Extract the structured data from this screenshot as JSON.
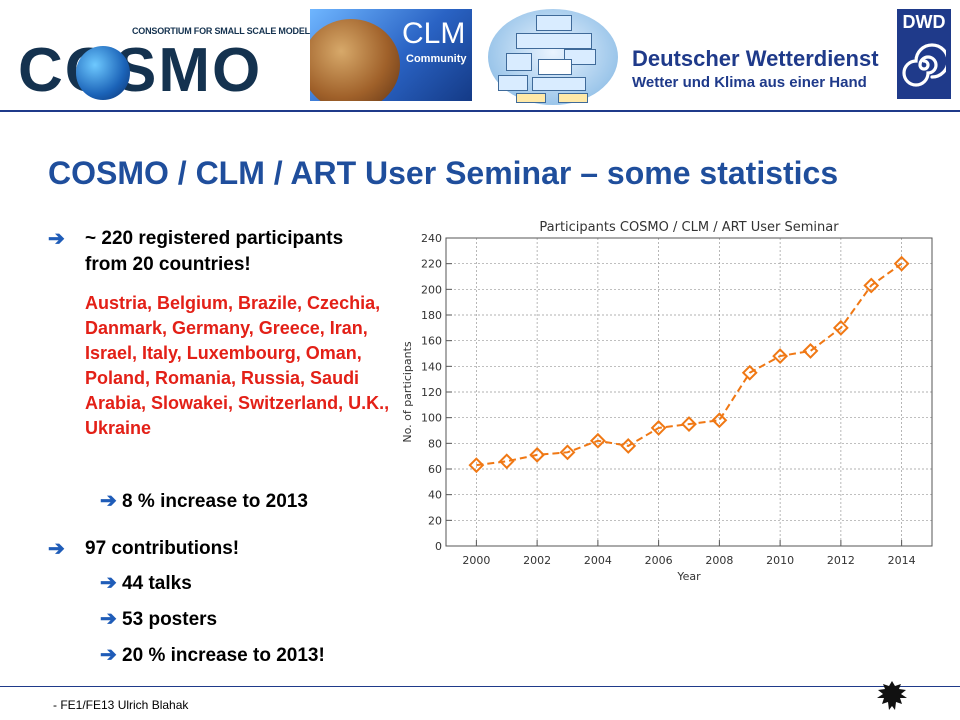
{
  "header": {
    "cosmo_logo": {
      "word": "COSMO",
      "subtitle": "CONSORTIUM FOR SMALL SCALE MODELING"
    },
    "clm_logo": {
      "word": "CLM",
      "subtitle": "Community"
    },
    "dwd": {
      "name": "Deutscher Wetterdienst",
      "slogan": "Wetter und Klima aus einer Hand",
      "logo_text": "DWD"
    },
    "accent_color": "#1f3a8a"
  },
  "slide": {
    "title": "COSMO / CLM / ART User Seminar – some statistics",
    "bullets": {
      "participants_line1": "~ 220 registered participants",
      "participants_line2": "from 20 countries!",
      "countries": "Austria, Belgium, Brazile, Czechia, Danmark, Germany, Greece, Iran, Israel, Italy, Luxembourg, Oman, Poland, Romania, Russia, Saudi Arabia, Slowakei, Switzerland, U.K., Ukraine",
      "participants_increase": "8 % increase to 2013",
      "contributions": "97 contributions!",
      "talks": "44 talks",
      "posters": "53 posters",
      "contributions_increase": "20 % increase to 2013!"
    },
    "arrow_glyph": "➔",
    "countries_color": "#e32017"
  },
  "footer": {
    "text": "- FE1/FE13 Ulrich Blahak"
  },
  "chart_data": {
    "type": "line",
    "title": "Participants COSMO / CLM / ART User Seminar",
    "xlabel": "Year",
    "ylabel": "No. of participants",
    "x": [
      2000,
      2001,
      2002,
      2003,
      2004,
      2005,
      2006,
      2007,
      2008,
      2009,
      2010,
      2011,
      2012,
      2013,
      2014
    ],
    "values": [
      63,
      66,
      71,
      73,
      82,
      78,
      92,
      95,
      98,
      135,
      148,
      152,
      170,
      203,
      220
    ],
    "xlim": [
      1999,
      2015
    ],
    "ylim": [
      0,
      240
    ],
    "xticks": [
      2000,
      2002,
      2004,
      2006,
      2008,
      2010,
      2012,
      2014
    ],
    "yticks": [
      0,
      20,
      40,
      60,
      80,
      100,
      120,
      140,
      160,
      180,
      200,
      220,
      240
    ],
    "grid": true,
    "marker": "diamond",
    "line_style": "dashed",
    "series_color": "#f07814"
  }
}
